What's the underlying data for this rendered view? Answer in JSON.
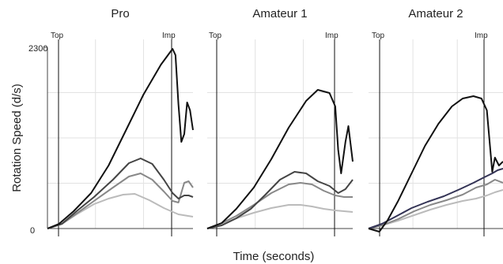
{
  "chart_data": {
    "type": "line",
    "ylabel": "Rotation Speed (d/s)",
    "xlabel": "Time (seconds)",
    "y_ticks": [
      "2300",
      "0"
    ],
    "ylim": [
      0,
      2300
    ],
    "grid": true,
    "panels": [
      {
        "title": "Pro",
        "markers": [
          "Top",
          "Imp"
        ],
        "series": [
          {
            "color": "#111111",
            "points": [
              [
                0,
                0
              ],
              [
                0.08,
                60
              ],
              [
                0.18,
                220
              ],
              [
                0.3,
                450
              ],
              [
                0.42,
                800
              ],
              [
                0.54,
                1250
              ],
              [
                0.66,
                1700
              ],
              [
                0.78,
                2080
              ],
              [
                0.86,
                2280
              ],
              [
                0.88,
                2200
              ],
              [
                0.9,
                1580
              ],
              [
                0.92,
                1100
              ],
              [
                0.94,
                1200
              ],
              [
                0.96,
                1600
              ],
              [
                0.98,
                1500
              ],
              [
                1.0,
                1250
              ]
            ]
          },
          {
            "color": "#444444",
            "points": [
              [
                0,
                0
              ],
              [
                0.1,
                60
              ],
              [
                0.2,
                220
              ],
              [
                0.32,
                400
              ],
              [
                0.45,
                620
              ],
              [
                0.56,
                830
              ],
              [
                0.64,
                890
              ],
              [
                0.72,
                820
              ],
              [
                0.8,
                620
              ],
              [
                0.86,
                450
              ],
              [
                0.9,
                380
              ],
              [
                0.94,
                420
              ],
              [
                0.97,
                420
              ],
              [
                1.0,
                400
              ]
            ]
          },
          {
            "color": "#888888",
            "points": [
              [
                0,
                0
              ],
              [
                0.1,
                60
              ],
              [
                0.2,
                190
              ],
              [
                0.32,
                350
              ],
              [
                0.45,
                520
              ],
              [
                0.56,
                660
              ],
              [
                0.64,
                700
              ],
              [
                0.72,
                620
              ],
              [
                0.8,
                470
              ],
              [
                0.86,
                350
              ],
              [
                0.9,
                330
              ],
              [
                0.94,
                580
              ],
              [
                0.97,
                600
              ],
              [
                1.0,
                520
              ]
            ]
          },
          {
            "color": "#bbbbbb",
            "points": [
              [
                0,
                0
              ],
              [
                0.1,
                60
              ],
              [
                0.2,
                180
              ],
              [
                0.32,
                310
              ],
              [
                0.42,
                380
              ],
              [
                0.52,
                430
              ],
              [
                0.6,
                440
              ],
              [
                0.7,
                360
              ],
              [
                0.8,
                260
              ],
              [
                0.9,
                180
              ],
              [
                1.0,
                150
              ]
            ]
          }
        ]
      },
      {
        "title": "Amateur 1",
        "markers": [
          "Top",
          "Imp"
        ],
        "series": [
          {
            "color": "#111111",
            "points": [
              [
                0,
                0
              ],
              [
                0.1,
                70
              ],
              [
                0.2,
                250
              ],
              [
                0.32,
                520
              ],
              [
                0.44,
                880
              ],
              [
                0.56,
                1280
              ],
              [
                0.68,
                1620
              ],
              [
                0.76,
                1760
              ],
              [
                0.84,
                1720
              ],
              [
                0.88,
                1550
              ],
              [
                0.9,
                1000
              ],
              [
                0.92,
                700
              ],
              [
                0.95,
                1100
              ],
              [
                0.97,
                1300
              ],
              [
                1.0,
                850
              ]
            ]
          },
          {
            "color": "#444444",
            "points": [
              [
                0,
                0
              ],
              [
                0.1,
                40
              ],
              [
                0.2,
                130
              ],
              [
                0.3,
                250
              ],
              [
                0.4,
                430
              ],
              [
                0.5,
                620
              ],
              [
                0.6,
                720
              ],
              [
                0.68,
                700
              ],
              [
                0.76,
                600
              ],
              [
                0.84,
                540
              ],
              [
                0.9,
                450
              ],
              [
                0.95,
                500
              ],
              [
                1.0,
                620
              ]
            ]
          },
          {
            "color": "#888888",
            "points": [
              [
                0,
                0
              ],
              [
                0.1,
                70
              ],
              [
                0.2,
                160
              ],
              [
                0.32,
                300
              ],
              [
                0.44,
                450
              ],
              [
                0.56,
                560
              ],
              [
                0.64,
                580
              ],
              [
                0.72,
                560
              ],
              [
                0.8,
                480
              ],
              [
                0.88,
                420
              ],
              [
                0.94,
                400
              ],
              [
                1.0,
                400
              ]
            ]
          },
          {
            "color": "#bbbbbb",
            "points": [
              [
                0,
                0
              ],
              [
                0.1,
                60
              ],
              [
                0.2,
                130
              ],
              [
                0.32,
                200
              ],
              [
                0.44,
                260
              ],
              [
                0.56,
                300
              ],
              [
                0.64,
                300
              ],
              [
                0.72,
                280
              ],
              [
                0.8,
                250
              ],
              [
                0.88,
                230
              ],
              [
                0.94,
                220
              ],
              [
                1.0,
                210
              ]
            ]
          }
        ]
      },
      {
        "title": "Amateur 2",
        "markers": [
          "Top",
          "Imp"
        ],
        "series": [
          {
            "color": "#111111",
            "points": [
              [
                0,
                0
              ],
              [
                0.08,
                -40
              ],
              [
                0.14,
                100
              ],
              [
                0.22,
                350
              ],
              [
                0.32,
                700
              ],
              [
                0.42,
                1050
              ],
              [
                0.52,
                1330
              ],
              [
                0.62,
                1550
              ],
              [
                0.7,
                1650
              ],
              [
                0.78,
                1680
              ],
              [
                0.84,
                1650
              ],
              [
                0.88,
                1500
              ],
              [
                0.92,
                720
              ],
              [
                0.94,
                900
              ],
              [
                0.97,
                800
              ],
              [
                1.0,
                850
              ]
            ]
          },
          {
            "color": "#333355",
            "points": [
              [
                0,
                0
              ],
              [
                0.1,
                60
              ],
              [
                0.2,
                150
              ],
              [
                0.32,
                260
              ],
              [
                0.44,
                340
              ],
              [
                0.56,
                410
              ],
              [
                0.68,
                500
              ],
              [
                0.78,
                580
              ],
              [
                0.86,
                650
              ],
              [
                0.92,
                700
              ],
              [
                0.96,
                740
              ],
              [
                1.0,
                760
              ]
            ]
          },
          {
            "color": "#888888",
            "points": [
              [
                0,
                0
              ],
              [
                0.1,
                40
              ],
              [
                0.22,
                120
              ],
              [
                0.34,
                220
              ],
              [
                0.46,
                300
              ],
              [
                0.58,
                360
              ],
              [
                0.7,
                430
              ],
              [
                0.8,
                520
              ],
              [
                0.88,
                560
              ],
              [
                0.94,
                620
              ],
              [
                1.0,
                580
              ]
            ]
          },
          {
            "color": "#bbbbbb",
            "points": [
              [
                0,
                0
              ],
              [
                0.1,
                40
              ],
              [
                0.22,
                100
              ],
              [
                0.34,
                170
              ],
              [
                0.46,
                240
              ],
              [
                0.58,
                300
              ],
              [
                0.7,
                350
              ],
              [
                0.8,
                380
              ],
              [
                0.88,
                420
              ],
              [
                0.94,
                460
              ],
              [
                1.0,
                490
              ]
            ]
          }
        ]
      }
    ]
  }
}
